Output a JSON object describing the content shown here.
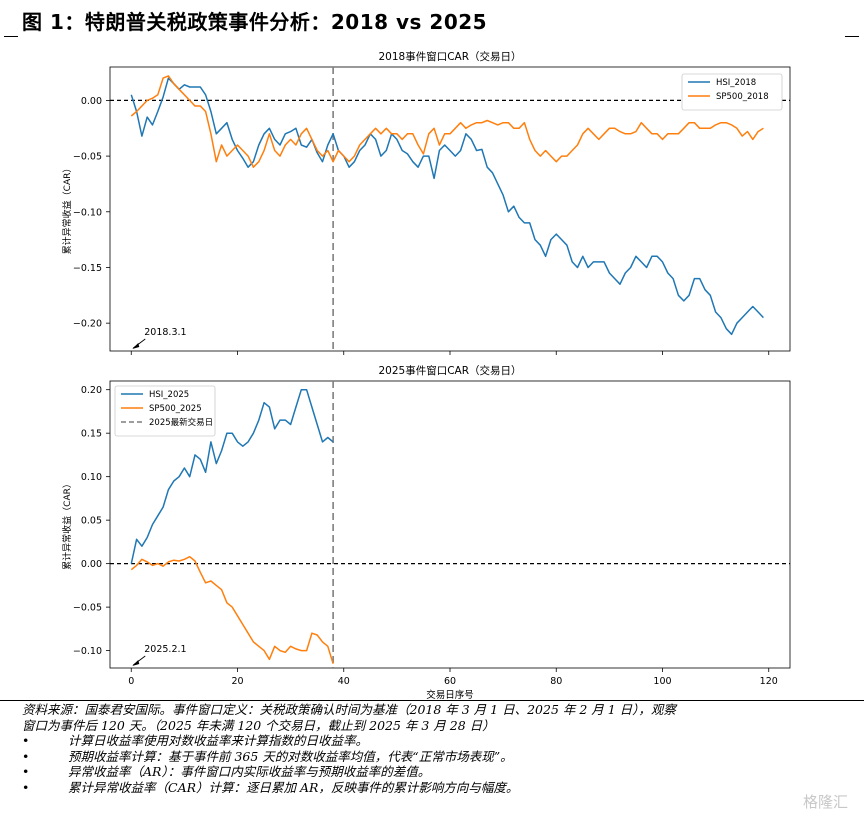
{
  "figure": {
    "title": "图 1：特朗普关税政策事件分析：2018 vs 2025"
  },
  "chart_data": [
    {
      "type": "line",
      "title": "2018事件窗口CAR（交易日）",
      "ylabel": "累计异常收益（CAR）",
      "xlabel": "",
      "xlim": [
        -4,
        124
      ],
      "ylim": [
        -0.225,
        0.03
      ],
      "yticks": [
        0.0,
        -0.05,
        -0.1,
        -0.15,
        -0.2
      ],
      "ytick_labels": [
        "0.00",
        "−0.05",
        "−0.10",
        "−0.15",
        "−0.20"
      ],
      "event_line_x": 0,
      "zero_line": 0,
      "latest_day_line_x": 38,
      "annotation": {
        "text": "2018.3.1",
        "x": 0,
        "y": -0.22
      },
      "legend_position": "upper right",
      "series": [
        {
          "name": "HSI_2018",
          "color": "#1f77b4",
          "x": [
            0,
            1,
            2,
            3,
            4,
            5,
            6,
            7,
            8,
            9,
            10,
            11,
            12,
            13,
            14,
            15,
            16,
            17,
            18,
            19,
            20,
            21,
            22,
            23,
            24,
            25,
            26,
            27,
            28,
            29,
            30,
            31,
            32,
            33,
            34,
            35,
            36,
            37,
            38,
            39,
            40,
            41,
            42,
            43,
            44,
            45,
            46,
            47,
            48,
            49,
            50,
            51,
            52,
            53,
            54,
            55,
            56,
            57,
            58,
            59,
            60,
            61,
            62,
            63,
            64,
            65,
            66,
            67,
            68,
            69,
            70,
            71,
            72,
            73,
            74,
            75,
            76,
            77,
            78,
            79,
            80,
            81,
            82,
            83,
            84,
            85,
            86,
            87,
            88,
            89,
            90,
            91,
            92,
            93,
            94,
            95,
            96,
            97,
            98,
            99,
            100,
            101,
            102,
            103,
            104,
            105,
            106,
            107,
            108,
            109,
            110,
            111,
            112,
            113,
            114,
            115,
            116,
            117,
            118,
            119
          ],
          "y": [
            0.005,
            -0.01,
            -0.032,
            -0.015,
            -0.022,
            -0.01,
            0.003,
            0.02,
            0.015,
            0.01,
            0.014,
            0.012,
            0.012,
            0.012,
            0.005,
            -0.01,
            -0.03,
            -0.025,
            -0.02,
            -0.035,
            -0.045,
            -0.052,
            -0.06,
            -0.055,
            -0.04,
            -0.03,
            -0.025,
            -0.035,
            -0.04,
            -0.03,
            -0.028,
            -0.025,
            -0.04,
            -0.042,
            -0.035,
            -0.047,
            -0.055,
            -0.04,
            -0.03,
            -0.045,
            -0.05,
            -0.06,
            -0.055,
            -0.045,
            -0.04,
            -0.03,
            -0.035,
            -0.05,
            -0.045,
            -0.03,
            -0.035,
            -0.045,
            -0.048,
            -0.055,
            -0.06,
            -0.05,
            -0.05,
            -0.07,
            -0.045,
            -0.04,
            -0.045,
            -0.05,
            -0.045,
            -0.03,
            -0.035,
            -0.045,
            -0.044,
            -0.06,
            -0.065,
            -0.075,
            -0.085,
            -0.1,
            -0.095,
            -0.105,
            -0.11,
            -0.11,
            -0.125,
            -0.13,
            -0.14,
            -0.125,
            -0.12,
            -0.125,
            -0.13,
            -0.145,
            -0.15,
            -0.14,
            -0.15,
            -0.145,
            -0.145,
            -0.145,
            -0.155,
            -0.16,
            -0.165,
            -0.155,
            -0.15,
            -0.14,
            -0.145,
            -0.15,
            -0.14,
            -0.14,
            -0.145,
            -0.155,
            -0.16,
            -0.175,
            -0.18,
            -0.175,
            -0.16,
            -0.16,
            -0.17,
            -0.175,
            -0.19,
            -0.195,
            -0.205,
            -0.21,
            -0.2,
            -0.195,
            -0.19,
            -0.185,
            -0.19,
            -0.195
          ]
        },
        {
          "name": "SP500_2018",
          "color": "#ff7f0e",
          "x": [
            0,
            1,
            2,
            3,
            4,
            5,
            6,
            7,
            8,
            9,
            10,
            11,
            12,
            13,
            14,
            15,
            16,
            17,
            18,
            19,
            20,
            21,
            22,
            23,
            24,
            25,
            26,
            27,
            28,
            29,
            30,
            31,
            32,
            33,
            34,
            35,
            36,
            37,
            38,
            39,
            40,
            41,
            42,
            43,
            44,
            45,
            46,
            47,
            48,
            49,
            50,
            51,
            52,
            53,
            54,
            55,
            56,
            57,
            58,
            59,
            60,
            61,
            62,
            63,
            64,
            65,
            66,
            67,
            68,
            69,
            70,
            71,
            72,
            73,
            74,
            75,
            76,
            77,
            78,
            79,
            80,
            81,
            82,
            83,
            84,
            85,
            86,
            87,
            88,
            89,
            90,
            91,
            92,
            93,
            94,
            95,
            96,
            97,
            98,
            99,
            100,
            101,
            102,
            103,
            104,
            105,
            106,
            107,
            108,
            109,
            110,
            111,
            112,
            113,
            114,
            115,
            116,
            117,
            118,
            119
          ],
          "y": [
            -0.014,
            -0.01,
            -0.005,
            0.0,
            0.002,
            0.005,
            0.02,
            0.022,
            0.015,
            0.01,
            0.005,
            0.0,
            -0.005,
            -0.005,
            -0.01,
            -0.03,
            -0.055,
            -0.04,
            -0.05,
            -0.045,
            -0.04,
            -0.045,
            -0.05,
            -0.06,
            -0.055,
            -0.045,
            -0.03,
            -0.045,
            -0.05,
            -0.04,
            -0.035,
            -0.04,
            -0.03,
            -0.025,
            -0.035,
            -0.045,
            -0.05,
            -0.045,
            -0.055,
            -0.045,
            -0.05,
            -0.055,
            -0.05,
            -0.04,
            -0.035,
            -0.03,
            -0.025,
            -0.03,
            -0.025,
            -0.03,
            -0.03,
            -0.035,
            -0.03,
            -0.03,
            -0.04,
            -0.048,
            -0.03,
            -0.025,
            -0.04,
            -0.03,
            -0.03,
            -0.025,
            -0.02,
            -0.025,
            -0.022,
            -0.02,
            -0.02,
            -0.018,
            -0.02,
            -0.022,
            -0.02,
            -0.02,
            -0.025,
            -0.025,
            -0.02,
            -0.035,
            -0.045,
            -0.05,
            -0.045,
            -0.05,
            -0.055,
            -0.05,
            -0.05,
            -0.045,
            -0.04,
            -0.03,
            -0.025,
            -0.03,
            -0.035,
            -0.03,
            -0.025,
            -0.025,
            -0.028,
            -0.03,
            -0.03,
            -0.028,
            -0.02,
            -0.025,
            -0.03,
            -0.03,
            -0.035,
            -0.03,
            -0.03,
            -0.03,
            -0.025,
            -0.02,
            -0.02,
            -0.025,
            -0.025,
            -0.025,
            -0.022,
            -0.02,
            -0.02,
            -0.022,
            -0.025,
            -0.032,
            -0.028,
            -0.035,
            -0.028,
            -0.025
          ]
        }
      ]
    },
    {
      "type": "line",
      "title": "2025事件窗口CAR（交易日）",
      "ylabel": "累计异常收益（CAR）",
      "xlabel": "交易日序号",
      "xlim": [
        -4,
        124
      ],
      "ylim": [
        -0.12,
        0.21
      ],
      "yticks": [
        0.2,
        0.15,
        0.1,
        0.05,
        0.0,
        -0.05,
        -0.1
      ],
      "ytick_labels": [
        "0.20",
        "0.15",
        "0.10",
        "0.05",
        "0.00",
        "−0.05",
        "−0.10"
      ],
      "xticks": [
        0,
        20,
        40,
        60,
        80,
        100,
        120
      ],
      "xtick_labels": [
        "0",
        "20",
        "40",
        "60",
        "80",
        "100",
        "120"
      ],
      "event_line_x": 0,
      "zero_line": 0,
      "latest_day_line_x": 38,
      "annotation": {
        "text": "2025.2.1",
        "x": 0,
        "y": -0.13
      },
      "legend_position": "upper left",
      "series": [
        {
          "name": "HSI_2025",
          "color": "#1f77b4",
          "x": [
            0,
            1,
            2,
            3,
            4,
            5,
            6,
            7,
            8,
            9,
            10,
            11,
            12,
            13,
            14,
            15,
            16,
            17,
            18,
            19,
            20,
            21,
            22,
            23,
            24,
            25,
            26,
            27,
            28,
            29,
            30,
            31,
            32,
            33,
            34,
            35,
            36,
            37,
            38
          ],
          "y": [
            0.0,
            0.028,
            0.02,
            0.03,
            0.045,
            0.055,
            0.065,
            0.085,
            0.095,
            0.1,
            0.11,
            0.1,
            0.125,
            0.12,
            0.105,
            0.14,
            0.115,
            0.13,
            0.15,
            0.15,
            0.14,
            0.135,
            0.14,
            0.15,
            0.165,
            0.185,
            0.18,
            0.155,
            0.165,
            0.165,
            0.16,
            0.18,
            0.2,
            0.2,
            0.18,
            0.16,
            0.14,
            0.145,
            0.14
          ]
        },
        {
          "name": "SP500_2025",
          "color": "#ff7f0e",
          "x": [
            0,
            1,
            2,
            3,
            4,
            5,
            6,
            7,
            8,
            9,
            10,
            11,
            12,
            13,
            14,
            15,
            16,
            17,
            18,
            19,
            20,
            21,
            22,
            23,
            24,
            25,
            26,
            27,
            28,
            29,
            30,
            31,
            32,
            33,
            34,
            35,
            36,
            37,
            38
          ],
          "y": [
            -0.007,
            -0.002,
            0.005,
            0.002,
            -0.002,
            0.0,
            -0.003,
            0.002,
            0.004,
            0.003,
            0.005,
            0.008,
            0.003,
            -0.01,
            -0.022,
            -0.02,
            -0.025,
            -0.03,
            -0.045,
            -0.05,
            -0.06,
            -0.07,
            -0.08,
            -0.09,
            -0.095,
            -0.1,
            -0.11,
            -0.095,
            -0.1,
            -0.102,
            -0.095,
            -0.098,
            -0.1,
            -0.1,
            -0.08,
            -0.082,
            -0.09,
            -0.095,
            -0.115
          ]
        },
        {
          "name": "2025最新交易日",
          "color": "#7f7f7f",
          "dashed": true
        }
      ]
    }
  ],
  "notes": {
    "line1": "资料来源：国泰君安国际。事件窗口定义：关税政策确认时间为基准（2018 年 3 月 1 日、2025 年 2 月 1 日），观察",
    "line2": "窗口为事件后 120 天。（2025 年未满 120 个交易日，截止到 2025 年 3 月 28 日）",
    "bullet": "•",
    "item1": "计算日收益率使用对数收益率来计算指数的日收益率。",
    "item2": "预期收益率计算：基于事件前 365 天的对数收益率均值，代表“正常市场表现”。",
    "item3": "异常收益率（AR）：事件窗口内实际收益率与预期收益率的差值。",
    "item4": "累计异常收益率（CAR）计算：逐日累加 AR，反映事件的累计影响方向与幅度。"
  },
  "watermark": {
    "text": "格隆汇"
  }
}
